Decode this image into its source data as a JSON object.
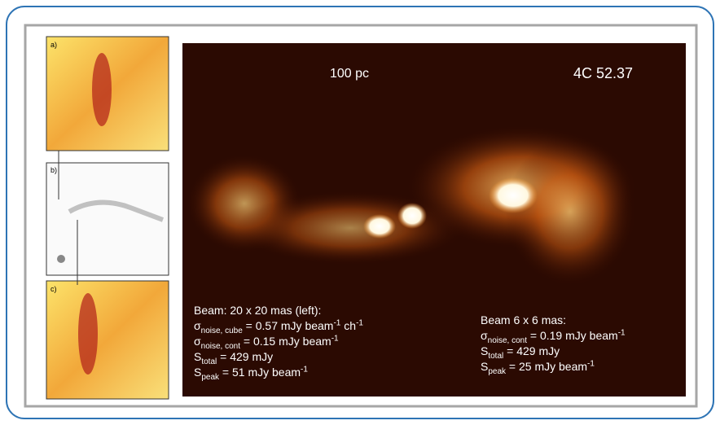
{
  "image_labels": {
    "scale": "100 pc",
    "source": "4C 52.37"
  },
  "panels": {
    "a": "a)",
    "b": "b)",
    "c": "c)"
  },
  "left_notes": [
    [
      "Beam: 20 x 20 mas (left):"
    ],
    [
      "σ",
      {
        "sub": "noise, cube"
      },
      " = 0.57 mJy beam",
      {
        "sup": "-1"
      },
      " ch",
      {
        "sup": "-1"
      }
    ],
    [
      "σ",
      {
        "sub": "noise, cont"
      },
      " = 0.15 mJy beam",
      {
        "sup": "-1"
      }
    ],
    [
      "S",
      {
        "sub": "total"
      },
      " = 429 mJy"
    ],
    [
      "S",
      {
        "sub": "peak"
      },
      " = 51 mJy beam",
      {
        "sup": "-1"
      }
    ]
  ],
  "right_notes": [
    [
      "Beam 6 x 6 mas:"
    ],
    [
      "σ",
      {
        "sub": "noise, cont"
      },
      " = 0.19 mJy beam",
      {
        "sup": "-1"
      }
    ],
    [
      "S",
      {
        "sub": "total"
      },
      " = 429 mJy"
    ],
    [
      "S",
      {
        "sub": "peak"
      },
      " = 25 mJy beam",
      {
        "sup": "-1"
      }
    ]
  ]
}
